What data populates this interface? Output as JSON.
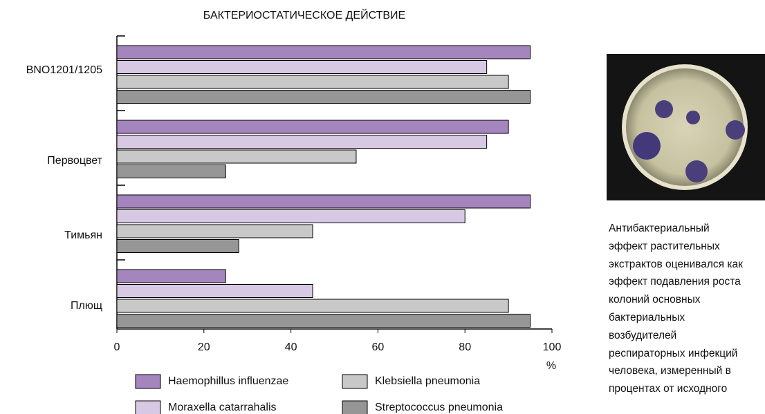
{
  "chart_data": {
    "type": "bar",
    "orientation": "horizontal",
    "title": "БАКТЕРИОСТАТИЧЕСКОЕ ДЕЙСТВИЕ",
    "categories": [
      "BNO1201/1205",
      "Первоцвет",
      "Тимьян",
      "Плющ"
    ],
    "series": [
      {
        "name": "Haemophillus influenzae",
        "color": "#a585bd",
        "values": [
          95,
          90,
          95,
          25
        ]
      },
      {
        "name": "Moraxella catarrahalis",
        "color": "#d7c8e3",
        "values": [
          85,
          85,
          80,
          45
        ]
      },
      {
        "name": "Klebsiella pneumonia",
        "color": "#c8c8c8",
        "values": [
          90,
          55,
          45,
          90
        ]
      },
      {
        "name": "Streptococcus pneumonia",
        "color": "#969696",
        "values": [
          95,
          25,
          28,
          95
        ]
      }
    ],
    "xlim": [
      0,
      100
    ],
    "xticks": [
      0,
      20,
      40,
      60,
      80,
      100
    ],
    "x_label": "%"
  },
  "photo": {
    "caption_lines": [
      "Антибактериальный",
      "эффект растительных",
      "экстрактов оценивался как",
      "эффект подавления роста",
      "колоний основных",
      "бактериальных",
      "возбудителей",
      "респираторных инфекций",
      "человека, измеренный в",
      "процентах от исходного"
    ]
  }
}
